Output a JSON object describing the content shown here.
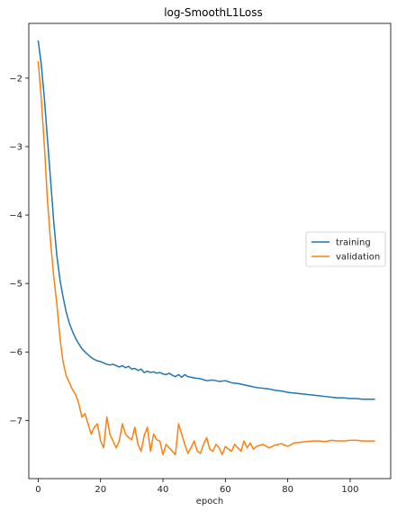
{
  "chart_data": {
    "type": "line",
    "title": "log-SmoothL1Loss",
    "xlabel": "epoch",
    "ylabel": "",
    "xlim": [
      -3,
      113
    ],
    "ylim": [
      -7.85,
      -1.2
    ],
    "xticks": [
      0,
      20,
      40,
      60,
      80,
      100
    ],
    "yticks": [
      -2,
      -3,
      -4,
      -5,
      -6,
      -7
    ],
    "ytick_labels": [
      "−2",
      "−3",
      "−4",
      "−5",
      "−6",
      "−7"
    ],
    "grid": false,
    "legend": "center-right",
    "series": [
      {
        "name": "training",
        "color": "#1f77b4",
        "x": [
          0,
          1,
          2,
          3,
          4,
          5,
          6,
          7,
          8,
          9,
          10,
          11,
          12,
          13,
          14,
          15,
          16,
          17,
          18,
          19,
          20,
          21,
          22,
          23,
          24,
          25,
          26,
          27,
          28,
          29,
          30,
          31,
          32,
          33,
          34,
          35,
          36,
          37,
          38,
          39,
          40,
          41,
          42,
          43,
          44,
          45,
          46,
          47,
          48,
          49,
          50,
          52,
          54,
          56,
          58,
          60,
          62,
          64,
          66,
          68,
          70,
          72,
          74,
          76,
          78,
          80,
          82,
          84,
          86,
          88,
          90,
          92,
          94,
          96,
          98,
          100,
          102,
          104,
          106,
          108
        ],
        "values": [
          -1.45,
          -1.8,
          -2.3,
          -2.9,
          -3.5,
          -4.1,
          -4.6,
          -4.95,
          -5.2,
          -5.42,
          -5.58,
          -5.7,
          -5.8,
          -5.88,
          -5.95,
          -6.0,
          -6.04,
          -6.08,
          -6.11,
          -6.13,
          -6.14,
          -6.16,
          -6.18,
          -6.19,
          -6.18,
          -6.2,
          -6.22,
          -6.2,
          -6.23,
          -6.21,
          -6.25,
          -6.24,
          -6.27,
          -6.25,
          -6.3,
          -6.28,
          -6.3,
          -6.29,
          -6.31,
          -6.3,
          -6.32,
          -6.33,
          -6.31,
          -6.34,
          -6.36,
          -6.33,
          -6.37,
          -6.33,
          -6.36,
          -6.37,
          -6.38,
          -6.39,
          -6.42,
          -6.41,
          -6.43,
          -6.42,
          -6.45,
          -6.46,
          -6.48,
          -6.5,
          -6.52,
          -6.53,
          -6.54,
          -6.56,
          -6.57,
          -6.59,
          -6.6,
          -6.61,
          -6.62,
          -6.63,
          -6.64,
          -6.65,
          -6.66,
          -6.67,
          -6.67,
          -6.68,
          -6.68,
          -6.69,
          -6.69,
          -6.69
        ]
      },
      {
        "name": "validation",
        "color": "#ff7f0e",
        "x": [
          0,
          1,
          2,
          3,
          4,
          5,
          6,
          7,
          8,
          9,
          10,
          11,
          12,
          13,
          14,
          15,
          16,
          17,
          18,
          19,
          20,
          21,
          22,
          23,
          24,
          25,
          26,
          27,
          28,
          29,
          30,
          31,
          32,
          33,
          34,
          35,
          36,
          37,
          38,
          39,
          40,
          41,
          42,
          43,
          44,
          45,
          46,
          47,
          48,
          49,
          50,
          51,
          52,
          53,
          54,
          55,
          56,
          57,
          58,
          59,
          60,
          61,
          62,
          63,
          64,
          65,
          66,
          67,
          68,
          69,
          70,
          72,
          74,
          76,
          78,
          80,
          82,
          84,
          86,
          88,
          90,
          92,
          94,
          96,
          98,
          100,
          102,
          104,
          106,
          108
        ],
        "values": [
          -1.75,
          -2.3,
          -3.0,
          -3.8,
          -4.4,
          -4.9,
          -5.3,
          -5.8,
          -6.15,
          -6.35,
          -6.45,
          -6.55,
          -6.62,
          -6.75,
          -6.95,
          -6.9,
          -7.05,
          -7.2,
          -7.1,
          -7.05,
          -7.3,
          -7.4,
          -6.95,
          -7.2,
          -7.3,
          -7.4,
          -7.3,
          -7.05,
          -7.2,
          -7.25,
          -7.28,
          -7.1,
          -7.35,
          -7.45,
          -7.22,
          -7.1,
          -7.45,
          -7.2,
          -7.28,
          -7.3,
          -7.5,
          -7.35,
          -7.4,
          -7.45,
          -7.5,
          -7.05,
          -7.2,
          -7.35,
          -7.48,
          -7.4,
          -7.3,
          -7.45,
          -7.48,
          -7.35,
          -7.25,
          -7.42,
          -7.45,
          -7.35,
          -7.4,
          -7.5,
          -7.38,
          -7.42,
          -7.45,
          -7.35,
          -7.4,
          -7.45,
          -7.3,
          -7.4,
          -7.33,
          -7.42,
          -7.38,
          -7.35,
          -7.4,
          -7.36,
          -7.34,
          -7.38,
          -7.33,
          -7.32,
          -7.31,
          -7.3,
          -7.3,
          -7.31,
          -7.29,
          -7.3,
          -7.3,
          -7.29,
          -7.29,
          -7.3,
          -7.3,
          -7.3
        ]
      }
    ]
  }
}
